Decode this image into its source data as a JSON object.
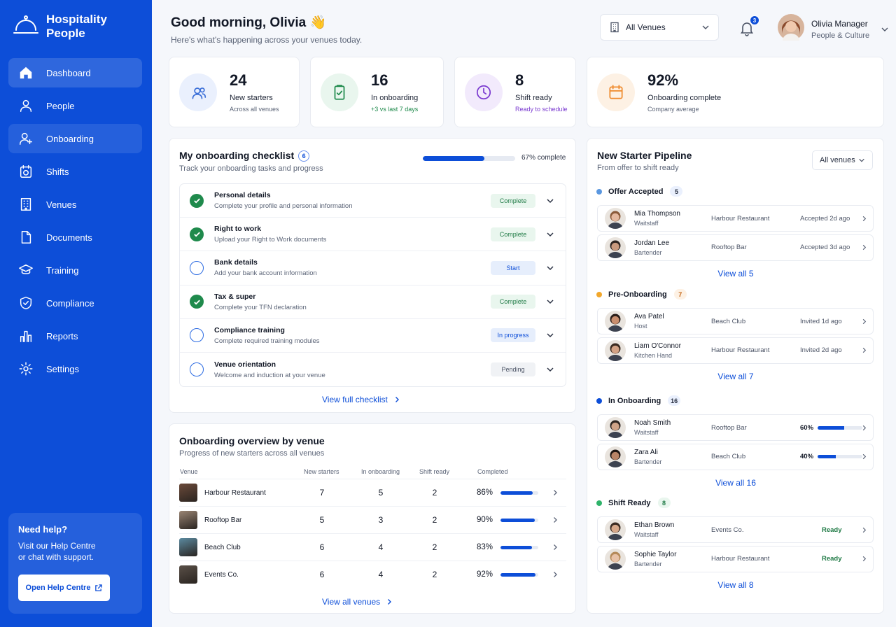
{
  "brand": {
    "line1": "Hospitality",
    "line2": "People"
  },
  "nav": [
    {
      "label": "Dashboard",
      "icon": "home-icon",
      "active": true
    },
    {
      "label": "People",
      "icon": "people-icon"
    },
    {
      "label": "Onboarding",
      "icon": "add-user-icon",
      "highlight": true
    },
    {
      "label": "Shifts",
      "icon": "clock-icon"
    },
    {
      "label": "Venues",
      "icon": "building-icon"
    },
    {
      "label": "Documents",
      "icon": "document-icon"
    },
    {
      "label": "Training",
      "icon": "graduation-cap-icon"
    },
    {
      "label": "Compliance",
      "icon": "shield-icon"
    },
    {
      "label": "Reports",
      "icon": "bar-chart-icon"
    },
    {
      "label": "Settings",
      "icon": "gear-icon"
    }
  ],
  "help": {
    "title": "Need help?",
    "text": "Visit our Help Centre or chat with support.",
    "button": "Open Help Centre"
  },
  "header": {
    "greeting": "Good morning, Olivia 👋",
    "subtitle": "Here's what's happening across your venues today.",
    "venue_filter": "All Venues",
    "notifications": "3",
    "user_name": "Olivia Manager",
    "user_role": "People & Culture"
  },
  "stats": [
    {
      "value": "24",
      "label": "New starters",
      "sub": "Across all venues",
      "color": "#3b6fd8",
      "bg": "#eaf0fd"
    },
    {
      "value": "16",
      "label": "In onboarding",
      "sub": "+3 vs last 7 days",
      "color": "#1f8a4c",
      "bg": "#e9f6ee",
      "sub_color": "#1f8a4c"
    },
    {
      "value": "8",
      "label": "Shift ready",
      "sub": "Ready to schedule",
      "color": "#7b3bd0",
      "bg": "#f2eafc",
      "sub_color": "#7b3bd0"
    },
    {
      "value": "92%",
      "label": "Onboarding complete",
      "sub": "Company average",
      "color": "#ef8a2c",
      "bg": "#fdf1e4"
    }
  ],
  "checklist": {
    "title": "My onboarding checklist",
    "count": "6",
    "subtitle": "Track your onboarding tasks and progress",
    "progress": 0.67,
    "progress_label": "67% complete",
    "items": [
      {
        "title": "Personal details",
        "desc": "Complete your profile and personal information",
        "status": "Complete",
        "done": true
      },
      {
        "title": "Right to work",
        "desc": "Upload your Right to Work documents",
        "status": "Complete",
        "done": true
      },
      {
        "title": "Bank details",
        "desc": "Add your bank account information",
        "status": "Start",
        "done": false
      },
      {
        "title": "Tax & super",
        "desc": "Complete your TFN declaration",
        "status": "Complete",
        "done": true
      },
      {
        "title": "Compliance training",
        "desc": "Complete required training modules",
        "status": "In progress",
        "done": false
      },
      {
        "title": "Venue orientation",
        "desc": "Welcome and induction at your venue",
        "status": "Pending",
        "done": false
      }
    ],
    "view_all": "View full checklist"
  },
  "overview": {
    "title": "Onboarding overview by venue",
    "subtitle": "Progress of new starters across all venues",
    "columns": [
      "Venue",
      "New starters",
      "In onboarding",
      "Shift ready",
      "Completed"
    ],
    "rows": [
      {
        "venue": "Harbour Restaurant",
        "new": "7",
        "onboarding": "5",
        "ready": "2",
        "completed": "86%",
        "pct": 0.86,
        "thumb": "#6b4a3a"
      },
      {
        "venue": "Rooftop Bar",
        "new": "5",
        "onboarding": "3",
        "ready": "2",
        "completed": "90%",
        "pct": 0.9,
        "thumb": "#9a8574"
      },
      {
        "venue": "Beach Club",
        "new": "6",
        "onboarding": "4",
        "ready": "2",
        "completed": "83%",
        "pct": 0.83,
        "thumb": "#5b8aa0"
      },
      {
        "venue": "Events Co.",
        "new": "6",
        "onboarding": "4",
        "ready": "2",
        "completed": "92%",
        "pct": 0.92,
        "thumb": "#5a5048"
      }
    ],
    "view_all": "View all venues"
  },
  "pipeline": {
    "title": "New Starter Pipeline",
    "subtitle": "From offer to shift ready",
    "filter": "All venues",
    "groups": [
      {
        "name": "Offer Accepted",
        "count": "5",
        "dot": "#5a97e0",
        "pill_bg": "#eaf0fd",
        "pill_color": "#2b3244",
        "people": [
          {
            "name": "Mia Thompson",
            "role": "Waitstaff",
            "venue": "Harbour Restaurant",
            "time": "Accepted 2d ago",
            "skin": "#e4b9a0",
            "hair": "#8a5a3a"
          },
          {
            "name": "Jordan Lee",
            "role": "Bartender",
            "venue": "Rooftop Bar",
            "time": "Accepted 3d ago",
            "skin": "#c99a7e",
            "hair": "#2d2420"
          }
        ],
        "view": "View all 5"
      },
      {
        "name": "Pre-Onboarding",
        "count": "7",
        "dot": "#f2a72b",
        "pill_bg": "#fdf1e4",
        "pill_color": "#c2620f",
        "people": [
          {
            "name": "Ava Patel",
            "role": "Host",
            "venue": "Beach Club",
            "time": "Invited 1d ago",
            "skin": "#c98e6e",
            "hair": "#2a1d18"
          },
          {
            "name": "Liam O'Connor",
            "role": "Kitchen Hand",
            "venue": "Harbour Restaurant",
            "time": "Invited 2d ago",
            "skin": "#d2a184",
            "hair": "#3a2a20"
          }
        ],
        "view": "View all 7"
      },
      {
        "name": "In Onboarding",
        "count": "16",
        "dot": "#0d4ed8",
        "pill_bg": "#eaf0fd",
        "pill_color": "#2b3244",
        "people": [
          {
            "name": "Noah Smith",
            "role": "Waitstaff",
            "venue": "Rooftop Bar",
            "pct_label": "60%",
            "pct": 0.6,
            "skin": "#d0a488",
            "hair": "#2e2520"
          },
          {
            "name": "Zara Ali",
            "role": "Bartender",
            "venue": "Beach Club",
            "pct_label": "40%",
            "pct": 0.4,
            "skin": "#b98466",
            "hair": "#1d1512"
          }
        ],
        "view": "View all 16"
      },
      {
        "name": "Shift Ready",
        "count": "8",
        "dot": "#2fb36a",
        "pill_bg": "#e9f6ee",
        "pill_color": "#1f7a45",
        "people": [
          {
            "name": "Ethan Brown",
            "role": "Waitstaff",
            "venue": "Events Co.",
            "ready": "Ready",
            "skin": "#d6a789",
            "hair": "#3b2b22"
          },
          {
            "name": "Sophie Taylor",
            "role": "Bartender",
            "venue": "Harbour Restaurant",
            "ready": "Ready",
            "skin": "#e8c2a8",
            "hair": "#b58a5a"
          }
        ],
        "view": "View all 8"
      }
    ]
  }
}
